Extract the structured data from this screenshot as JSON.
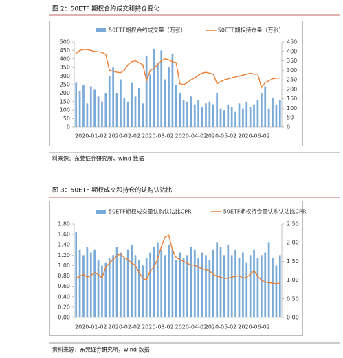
{
  "chart_data": [
    {
      "type": "bar-line",
      "title": "图 2：50ETF 期权合约成交和持仓变化",
      "source": "料来源：东莞证券研究所，wind 数据",
      "categories": [
        null,
        null,
        null,
        null,
        "2020-01-02",
        null,
        null,
        null,
        null,
        null,
        null,
        null,
        null,
        "2020-02-02",
        null,
        null,
        null,
        null,
        null,
        null,
        null,
        null,
        "2020-03-02",
        null,
        null,
        null,
        null,
        null,
        null,
        null,
        null,
        "2020-04-02",
        null,
        null,
        null,
        null,
        null,
        null,
        null,
        "2020-05-02",
        null,
        null,
        null,
        null,
        null,
        null,
        null,
        null,
        "2020-06-02",
        null,
        null,
        null,
        null,
        null,
        null,
        null
      ],
      "series": [
        {
          "name": "50ETF期权合约成交量（万张）",
          "color": "#7aaad8",
          "kind": "bar",
          "values": [
            260,
            210,
            250,
            140,
            240,
            220,
            180,
            150,
            200,
            300,
            350,
            200,
            280,
            170,
            150,
            260,
            180,
            230,
            140,
            420,
            310,
            460,
            380,
            450,
            280,
            350,
            430,
            250,
            200,
            160,
            150,
            180,
            130,
            160,
            120,
            140,
            150,
            130,
            200,
            110,
            100,
            130,
            120,
            90,
            140,
            110,
            150,
            120,
            130,
            160,
            200,
            240,
            110,
            170,
            130,
            160
          ]
        },
        {
          "name": "50ETF期权持仓量（万张）",
          "color": "#ed7d31",
          "kind": "line",
          "axis": "y2",
          "values": [
            390,
            405,
            410,
            410,
            405,
            400,
            398,
            395,
            385,
            300,
            295,
            290,
            288,
            300,
            330,
            345,
            350,
            340,
            330,
            245,
            300,
            310,
            330,
            350,
            360,
            355,
            345,
            340,
            230,
            225,
            235,
            250,
            260,
            275,
            285,
            290,
            285,
            280,
            230,
            240,
            250,
            255,
            260,
            265,
            270,
            275,
            280,
            285,
            280,
            280,
            210,
            235,
            245,
            255,
            258,
            260
          ]
        }
      ],
      "ylim": [
        0,
        500
      ],
      "yticks": [
        0,
        50,
        100,
        150,
        200,
        250,
        300,
        350,
        400,
        450,
        500
      ],
      "y2lim": [
        0,
        450
      ],
      "y2ticks": [
        0,
        50,
        100,
        150,
        200,
        250,
        300,
        350,
        400,
        450
      ]
    },
    {
      "type": "bar-line",
      "title": "图 3：50ETF 期权成交和持仓的认购认沽比",
      "source": "资料来源：东莞证券研究所，wind 数据",
      "categories": [
        null,
        null,
        null,
        null,
        "2020-01-02",
        null,
        null,
        null,
        null,
        null,
        null,
        null,
        null,
        "2020-02-02",
        null,
        null,
        null,
        null,
        null,
        null,
        null,
        null,
        "2020-03-02",
        null,
        null,
        null,
        null,
        null,
        null,
        null,
        null,
        "2020-04-02",
        null,
        null,
        null,
        null,
        null,
        null,
        null,
        "2020-05-02",
        null,
        null,
        null,
        null,
        null,
        null,
        null,
        null,
        "2020-06-02",
        null,
        null,
        null,
        null,
        null,
        null,
        null
      ],
      "series": [
        {
          "name": "50ETF期权成交量认购认沽比CPR",
          "color": "#7aaad8",
          "kind": "bar",
          "values": [
            1.65,
            1.3,
            1.2,
            1.35,
            1.25,
            1.3,
            1.1,
            1.0,
            1.05,
            1.15,
            1.2,
            1.35,
            1.25,
            1.15,
            1.3,
            1.4,
            1.2,
            1.1,
            1.0,
            1.15,
            1.25,
            1.35,
            1.45,
            1.3,
            1.2,
            1.4,
            1.3,
            1.1,
            1.25,
            1.15,
            1.2,
            1.35,
            1.3,
            1.15,
            1.25,
            1.2,
            1.1,
            1.3,
            1.45,
            1.35,
            1.2,
            1.4,
            1.2,
            1.3,
            1.15,
            1.25,
            1.05,
            1.2,
            1.3,
            1.15,
            1.2,
            1.25,
            1.45,
            1.15,
            1.0,
            1.2
          ]
        },
        {
          "name": "50ETF期权持仓量认购认沽比CPR",
          "color": "#ed7d31",
          "kind": "line",
          "axis": "y2",
          "values": [
            1.05,
            1.1,
            1.15,
            1.08,
            1.12,
            1.2,
            1.15,
            1.05,
            1.35,
            1.45,
            1.55,
            1.65,
            1.7,
            1.6,
            1.55,
            1.45,
            1.4,
            1.2,
            1.05,
            1.0,
            1.25,
            1.35,
            1.55,
            1.9,
            2.15,
            2.2,
            1.8,
            1.6,
            1.55,
            1.5,
            1.45,
            1.4,
            1.4,
            1.35,
            1.3,
            1.28,
            1.25,
            1.15,
            1.1,
            1.08,
            1.05,
            1.05,
            1.08,
            1.1,
            1.12,
            1.05,
            1.08,
            1.15,
            1.25,
            1.1,
            1.0,
            0.95,
            0.93,
            0.92,
            0.9,
            0.92
          ]
        }
      ],
      "ylim": [
        0,
        1.8
      ],
      "yticks": [
        {
          "value": 0,
          "label": "0.00"
        },
        {
          "value": 0.2,
          "label": "0.20"
        },
        {
          "value": 0.4,
          "label": "0.40"
        },
        {
          "value": 0.6,
          "label": "0.60"
        },
        {
          "value": 0.8,
          "label": "0.80"
        },
        {
          "value": 1.0,
          "label": "1.00"
        },
        {
          "value": 1.2,
          "label": "1.20"
        },
        {
          "value": 1.4,
          "label": "1.40"
        },
        {
          "value": 1.6,
          "label": "1.60"
        },
        {
          "value": 1.8,
          "label": "1.80"
        }
      ],
      "y2lim": [
        0,
        2.5
      ],
      "y2ticks": [
        {
          "value": 0,
          "label": "0.00"
        },
        {
          "value": 0.5,
          "label": "0.50"
        },
        {
          "value": 1.0,
          "label": "1.00"
        },
        {
          "value": 1.5,
          "label": "1.50"
        },
        {
          "value": 2.0,
          "label": "2.00"
        },
        {
          "value": 2.5,
          "label": "2.50"
        }
      ]
    }
  ]
}
